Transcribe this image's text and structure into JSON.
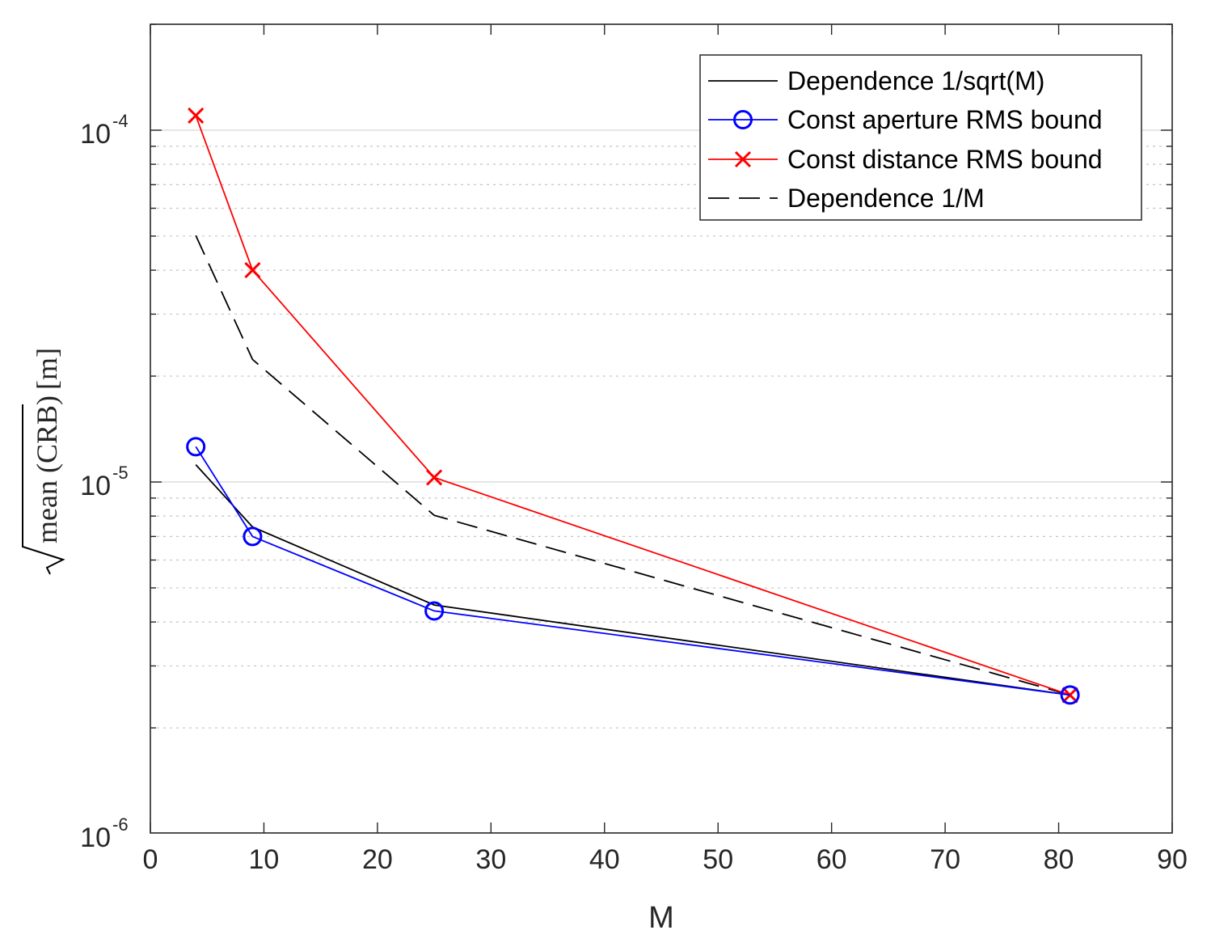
{
  "chart_data": {
    "type": "line",
    "xlabel": "M",
    "ylabel": {
      "radicand": "mean (CRB)",
      "unit": "[m]"
    },
    "xlim": [
      0,
      90
    ],
    "ylim": [
      1e-06,
      0.00023
    ],
    "yscale": "log",
    "grid": "horizontal major and minor",
    "legend_position": "top-right",
    "xticks": [
      {
        "value": 0,
        "label": "0"
      },
      {
        "value": 10,
        "label": "10"
      },
      {
        "value": 20,
        "label": "20"
      },
      {
        "value": 30,
        "label": "30"
      },
      {
        "value": 40,
        "label": "40"
      },
      {
        "value": 50,
        "label": "50"
      },
      {
        "value": 60,
        "label": "60"
      },
      {
        "value": 70,
        "label": "70"
      },
      {
        "value": 80,
        "label": "80"
      },
      {
        "value": 90,
        "label": "90"
      }
    ],
    "yticks": [
      {
        "value": 1e-06,
        "base": "10",
        "exp": "-6"
      },
      {
        "value": 1e-05,
        "base": "10",
        "exp": "-5"
      },
      {
        "value": 0.0001,
        "base": "10",
        "exp": "-4"
      }
    ],
    "series": [
      {
        "name": "Dependence 1/sqrt(M)",
        "color": "#000000",
        "style": "solid",
        "marker": "none",
        "x": [
          4,
          9,
          25,
          81
        ],
        "y": [
          1.12e-05,
          7.45e-06,
          4.47e-06,
          2.48e-06
        ]
      },
      {
        "name": "Const aperture RMS bound",
        "color": "#0000ff",
        "style": "solid",
        "marker": "circle",
        "x": [
          4,
          9,
          25,
          81
        ],
        "y": [
          1.26e-05,
          7e-06,
          4.3e-06,
          2.48e-06
        ]
      },
      {
        "name": "Const distance RMS bound",
        "color": "#ff0000",
        "style": "solid",
        "marker": "x",
        "x": [
          4,
          9,
          25,
          81
        ],
        "y": [
          0.00011,
          4e-05,
          1.03e-05,
          2.48e-06
        ]
      },
      {
        "name": "Dependence 1/M",
        "color": "#000000",
        "style": "dashed",
        "marker": "none",
        "x": [
          4,
          9,
          25,
          81
        ],
        "y": [
          5.02e-05,
          2.23e-05,
          8.04e-06,
          2.48e-06
        ]
      }
    ]
  }
}
